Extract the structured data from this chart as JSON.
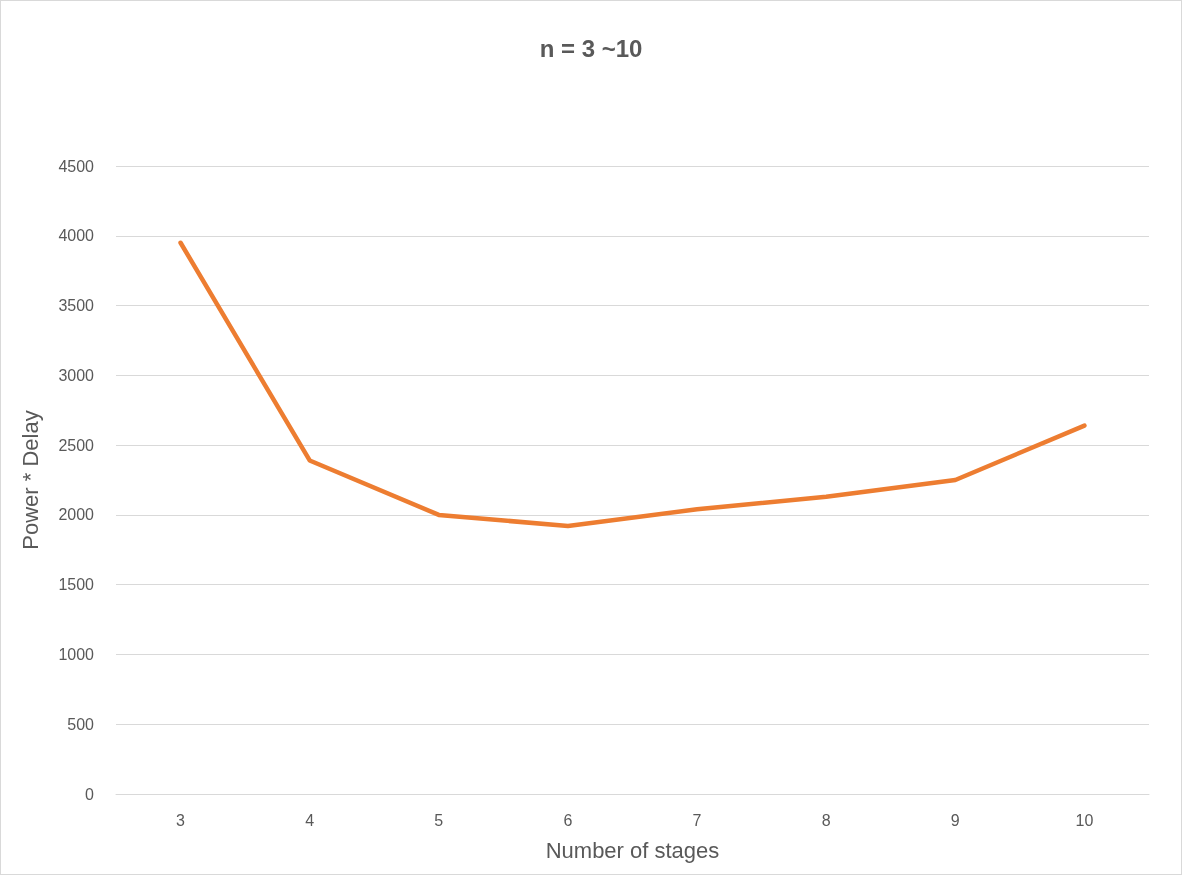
{
  "chart_data": {
    "type": "line",
    "title": "n = 3 ~10",
    "xlabel": "Number of stages",
    "ylabel": "Power * Delay",
    "categories": [
      "3",
      "4",
      "5",
      "6",
      "7",
      "8",
      "9",
      "10"
    ],
    "series": [
      {
        "color": "#ed7d31",
        "values": [
          3950,
          2390,
          2000,
          1920,
          2040,
          2130,
          2250,
          2640
        ]
      }
    ],
    "ylim": [
      0,
      4500
    ],
    "yticks": [
      0,
      500,
      1000,
      1500,
      2000,
      2500,
      3000,
      3500,
      4000,
      4500
    ],
    "grid": "y",
    "marker": "none",
    "line_style": "solid"
  }
}
